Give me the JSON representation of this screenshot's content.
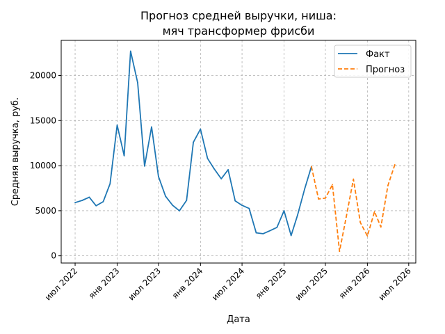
{
  "chart_data": {
    "type": "line",
    "title": [
      "Прогноз средней выручки, ниша:",
      "мяч трансформер фрисби"
    ],
    "xlabel": "Дата",
    "ylabel": "Средняя выручка, руб.",
    "xlim": [
      "2022-05-01",
      "2026-08-01"
    ],
    "ylim": [
      -800,
      23900
    ],
    "grid": true,
    "legend_position": "top-right",
    "x_ticks": [
      {
        "date": "2022-07-01",
        "label": "июл 2022"
      },
      {
        "date": "2023-01-01",
        "label": "янв 2023"
      },
      {
        "date": "2023-07-01",
        "label": "июл 2023"
      },
      {
        "date": "2024-01-01",
        "label": "янв 2024"
      },
      {
        "date": "2024-07-01",
        "label": "июл 2024"
      },
      {
        "date": "2025-01-01",
        "label": "янв 2025"
      },
      {
        "date": "2025-07-01",
        "label": "июл 2025"
      },
      {
        "date": "2026-01-01",
        "label": "янв 2026"
      },
      {
        "date": "2026-07-01",
        "label": "июл 2026"
      }
    ],
    "y_ticks": [
      0,
      5000,
      10000,
      15000,
      20000
    ],
    "series": [
      {
        "name": "Факт",
        "color": "#1f77b4",
        "style": "solid",
        "points": [
          [
            "2022-07-01",
            5900
          ],
          [
            "2022-08-01",
            6150
          ],
          [
            "2022-09-01",
            6500
          ],
          [
            "2022-10-01",
            5550
          ],
          [
            "2022-11-01",
            6000
          ],
          [
            "2022-12-01",
            8000
          ],
          [
            "2023-01-01",
            14500
          ],
          [
            "2023-02-01",
            11100
          ],
          [
            "2023-03-01",
            22700
          ],
          [
            "2023-04-01",
            19200
          ],
          [
            "2023-05-01",
            9950
          ],
          [
            "2023-06-01",
            14300
          ],
          [
            "2023-07-01",
            8800
          ],
          [
            "2023-08-01",
            6600
          ],
          [
            "2023-09-01",
            5600
          ],
          [
            "2023-10-01",
            5000
          ],
          [
            "2023-11-01",
            6150
          ],
          [
            "2023-12-01",
            12600
          ],
          [
            "2024-01-01",
            14050
          ],
          [
            "2024-02-01",
            10800
          ],
          [
            "2024-03-01",
            9650
          ],
          [
            "2024-04-01",
            8550
          ],
          [
            "2024-05-01",
            9550
          ],
          [
            "2024-06-01",
            6100
          ],
          [
            "2024-07-01",
            5600
          ],
          [
            "2024-08-01",
            5250
          ],
          [
            "2024-09-01",
            2550
          ],
          [
            "2024-10-01",
            2450
          ],
          [
            "2024-11-01",
            2800
          ],
          [
            "2024-12-01",
            3150
          ],
          [
            "2025-01-01",
            5000
          ],
          [
            "2025-02-01",
            2250
          ],
          [
            "2025-03-01",
            4500
          ],
          [
            "2025-04-01",
            7400
          ],
          [
            "2025-05-01",
            9900
          ]
        ]
      },
      {
        "name": "Прогноз",
        "color": "#ff7f0e",
        "style": "dashed",
        "points": [
          [
            "2025-05-01",
            9900
          ],
          [
            "2025-06-01",
            6300
          ],
          [
            "2025-07-01",
            6400
          ],
          [
            "2025-08-01",
            7900
          ],
          [
            "2025-09-01",
            500
          ],
          [
            "2025-10-01",
            4400
          ],
          [
            "2025-11-01",
            8500
          ],
          [
            "2025-12-01",
            3700
          ],
          [
            "2026-01-01",
            2200
          ],
          [
            "2026-02-01",
            4900
          ],
          [
            "2026-03-01",
            3200
          ],
          [
            "2026-04-01",
            7800
          ],
          [
            "2026-05-01",
            10100
          ]
        ]
      }
    ]
  }
}
